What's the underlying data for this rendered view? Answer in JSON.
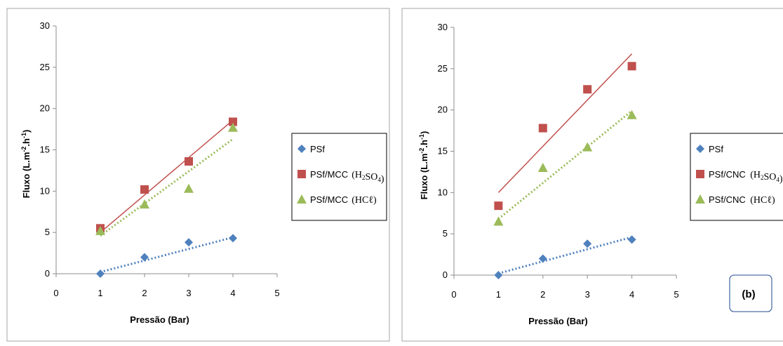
{
  "chart_data": [
    {
      "type": "scatter",
      "title": "",
      "xlabel": "Pressão (Bar)",
      "ylabel_main": "Fluxo (L.m",
      "ylabel_sup1": "-2",
      "ylabel_mid": ".h",
      "ylabel_sup2": "-1",
      "ylabel_end": ")",
      "xlim": [
        0,
        5
      ],
      "ylim": [
        0,
        30
      ],
      "xticks": [
        "0",
        "1",
        "2",
        "3",
        "4",
        "5"
      ],
      "yticks": [
        "0",
        "5",
        "10",
        "15",
        "20",
        "25",
        "30"
      ],
      "grid": false,
      "legend_position": "right",
      "panel_label": "",
      "series": [
        {
          "name": "PSf",
          "legend_label": "PSf",
          "legend_formula": "",
          "marker": "diamond",
          "color": "#4f81bd",
          "x": [
            1,
            2,
            3,
            4
          ],
          "y": [
            0,
            2,
            3.8,
            4.3
          ],
          "trendline": {
            "style": "dotted",
            "from": [
              1,
              0.2
            ],
            "to": [
              4,
              4.4
            ]
          }
        },
        {
          "name": "PSf/MCC (H2SO4)",
          "legend_label": "PSf/MCC",
          "legend_formula": "(H2SO4)",
          "marker": "square",
          "color": "#c0504d",
          "x": [
            1,
            2,
            3,
            4
          ],
          "y": [
            5.5,
            10.2,
            13.6,
            18.4
          ],
          "trendline": {
            "style": "solid",
            "from": [
              1,
              5.0
            ],
            "to": [
              4,
              18.6
            ]
          }
        },
        {
          "name": "PSf/MCC (HCℓ)",
          "legend_label": "PSf/MCC",
          "legend_formula": "(HCℓ)",
          "marker": "triangle",
          "color": "#9bbb59",
          "x": [
            1,
            2,
            3,
            4
          ],
          "y": [
            5.2,
            8.4,
            10.3,
            17.7
          ],
          "trendline": {
            "style": "dotted",
            "from": [
              1,
              4.6
            ],
            "to": [
              4,
              16.3
            ]
          }
        }
      ]
    },
    {
      "type": "scatter",
      "title": "",
      "xlabel": "Pressão (Bar)",
      "ylabel_main": "Fluxo (L.m",
      "ylabel_sup1": "-2",
      "ylabel_mid": ".h",
      "ylabel_sup2": "-1",
      "ylabel_end": ")",
      "xlim": [
        0,
        5
      ],
      "ylim": [
        0,
        30
      ],
      "xticks": [
        "0",
        "1",
        "2",
        "3",
        "4",
        "5"
      ],
      "yticks": [
        "0",
        "5",
        "10",
        "15",
        "20",
        "25",
        "30"
      ],
      "grid": false,
      "legend_position": "right",
      "panel_label": "(b)",
      "series": [
        {
          "name": "PSf",
          "legend_label": "PSf",
          "legend_formula": "",
          "marker": "diamond",
          "color": "#4f81bd",
          "x": [
            1,
            2,
            3,
            4
          ],
          "y": [
            0,
            2,
            3.8,
            4.3
          ],
          "trendline": {
            "style": "dotted",
            "from": [
              1,
              0.2
            ],
            "to": [
              4,
              4.6
            ]
          }
        },
        {
          "name": "PSf/CNC (H2SO4)",
          "legend_label": "PSf/CNC",
          "legend_formula": "(H2SO4)",
          "marker": "square",
          "color": "#c0504d",
          "x": [
            1,
            2,
            3,
            4
          ],
          "y": [
            8.4,
            17.8,
            22.5,
            25.3
          ],
          "trendline": {
            "style": "solid",
            "from": [
              1,
              10.0
            ],
            "to": [
              4,
              26.8
            ]
          }
        },
        {
          "name": "PSf/CNC (HCℓ)",
          "legend_label": "PSf/CNC",
          "legend_formula": "(HCℓ)",
          "marker": "triangle",
          "color": "#9bbb59",
          "x": [
            1,
            2,
            3,
            4
          ],
          "y": [
            6.5,
            13.0,
            15.5,
            19.4
          ],
          "trendline": {
            "style": "dotted",
            "from": [
              1,
              6.8
            ],
            "to": [
              4,
              19.9
            ]
          }
        }
      ]
    }
  ]
}
